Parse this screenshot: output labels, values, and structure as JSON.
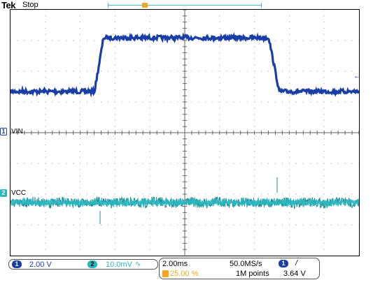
{
  "header": {
    "brand": "Tek",
    "status": "Stop"
  },
  "channels": [
    {
      "id": "1",
      "label": "VIN",
      "scale": "2.00 V",
      "color": "#1a3ea8"
    },
    {
      "id": "2",
      "label": "VCC",
      "scale": "10.0mV",
      "bandwidth_icon": "bandwidth-limit-icon",
      "color": "#28b7c0"
    }
  ],
  "horizontal": {
    "timebase": "2.00ms",
    "trigger_position": "25.00 %",
    "sample_rate": "50.0MS/s",
    "record_length": "1M points"
  },
  "trigger": {
    "source": "1",
    "slope_icon": "rising-edge-icon",
    "slope_glyph": "/",
    "level": "3.64 V"
  },
  "markers": {
    "trigger_marker_glyph": "T",
    "trigger_level_glyph": "←",
    "bw_glyph": "∿"
  },
  "colors": {
    "ch1": "#1a3ea8",
    "ch2": "#28b7c0",
    "trigger": "#f5a623",
    "grid": "#9a9a9a"
  }
}
